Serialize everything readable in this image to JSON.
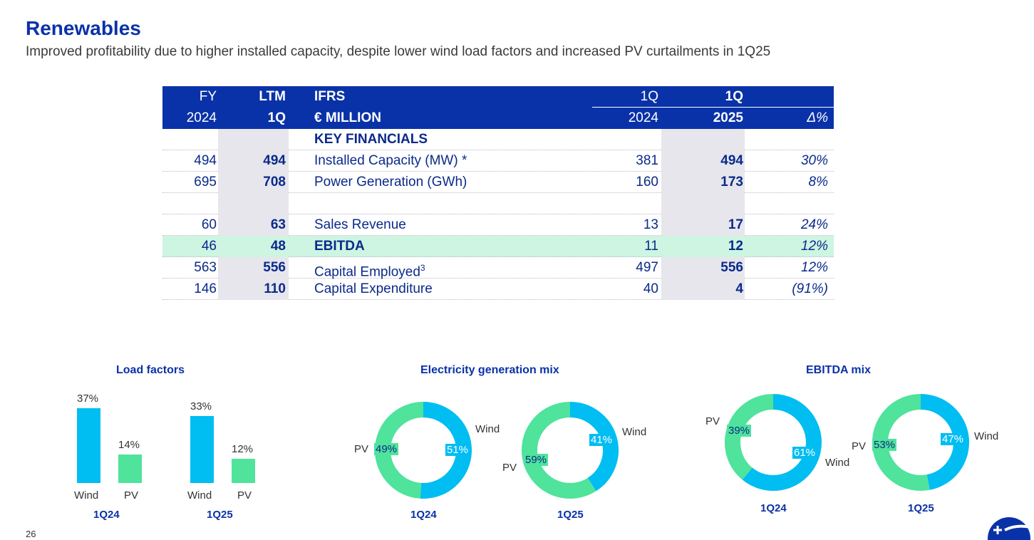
{
  "header": {
    "title": "Renewables",
    "subtitle": "Improved profitability due to higher installed capacity, despite lower wind load factors and increased PV curtailments in 1Q25"
  },
  "table": {
    "header1": {
      "fy": "FY",
      "ltm": "LTM",
      "label": "IFRS",
      "q24": "1Q",
      "q25": "1Q",
      "dp": ""
    },
    "header2": {
      "fy": "2024",
      "ltm": "1Q",
      "label": "€ MILLION",
      "q24": "2024",
      "q25": "2025",
      "dp": "Δ%"
    },
    "section": "KEY FINANCIALS",
    "rows": [
      {
        "fy": "494",
        "ltm": "494",
        "label": "Installed Capacity (MW) *",
        "sup": "",
        "q24": "381",
        "q25": "494",
        "dp": "30%"
      },
      {
        "fy": "695",
        "ltm": "708",
        "label": "Power Generation (GWh)",
        "sup": "",
        "q24": "160",
        "q25": "173",
        "dp": "8%"
      },
      {
        "fy": "",
        "ltm": "",
        "label": "",
        "sup": "",
        "q24": "",
        "q25": "",
        "dp": ""
      },
      {
        "fy": "60",
        "ltm": "63",
        "label": "Sales Revenue",
        "sup": "",
        "q24": "13",
        "q25": "17",
        "dp": "24%"
      },
      {
        "fy": "46",
        "ltm": "48",
        "label": "EBITDA",
        "sup": "",
        "q24": "11",
        "q25": "12",
        "dp": "12%"
      },
      {
        "fy": "563",
        "ltm": "556",
        "label": "Capital Employed",
        "sup": "3",
        "q24": "497",
        "q25": "556",
        "dp": "12%"
      },
      {
        "fy": "146",
        "ltm": "110",
        "label": "Capital Expenditure",
        "sup": "",
        "q24": "40",
        "q25": "4",
        "dp": "(91%)"
      }
    ]
  },
  "colors": {
    "wind": "#00bdf2",
    "pv": "#4fe39b",
    "navy": "#0a32a8",
    "highlight": "#cdf5e2",
    "shade": "#e6e6ec"
  },
  "chart_data": [
    {
      "type": "bar",
      "title": "Load factors",
      "unit": "%",
      "groups": [
        {
          "period": "1Q24",
          "categories": [
            "Wind",
            "PV"
          ],
          "values": [
            37,
            14
          ],
          "labels": [
            "37%",
            "14%"
          ]
        },
        {
          "period": "1Q25",
          "categories": [
            "Wind",
            "PV"
          ],
          "values": [
            33,
            12
          ],
          "labels": [
            "33%",
            "12%"
          ]
        }
      ]
    },
    {
      "type": "pie",
      "title": "Electricity generation mix",
      "groups": [
        {
          "period": "1Q24",
          "slices": [
            {
              "name": "Wind",
              "value": 51,
              "label": "51%"
            },
            {
              "name": "PV",
              "value": 49,
              "label": "49%"
            }
          ]
        },
        {
          "period": "1Q25",
          "slices": [
            {
              "name": "Wind",
              "value": 41,
              "label": "41%"
            },
            {
              "name": "PV",
              "value": 59,
              "label": "59%"
            }
          ]
        }
      ]
    },
    {
      "type": "pie",
      "title": "EBITDA mix",
      "groups": [
        {
          "period": "1Q24",
          "slices": [
            {
              "name": "Wind",
              "value": 61,
              "label": "61%"
            },
            {
              "name": "PV",
              "value": 39,
              "label": "39%"
            }
          ]
        },
        {
          "period": "1Q25",
          "slices": [
            {
              "name": "Wind",
              "value": 47,
              "label": "47%"
            },
            {
              "name": "PV",
              "value": 53,
              "label": "53%"
            }
          ]
        }
      ]
    }
  ],
  "footer": {
    "page_number": "26",
    "logo_icon": "company-logo-icon"
  }
}
